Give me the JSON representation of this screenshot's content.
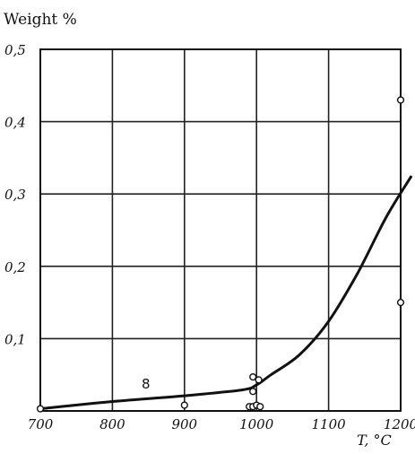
{
  "chart_data": {
    "type": "scatter",
    "ylabel": "Weight %",
    "xlabel": "T, °C",
    "xlim": [
      700,
      1200
    ],
    "ylim": [
      0,
      0.5
    ],
    "x_ticks": [
      "700",
      "800",
      "900",
      "1000",
      "1100",
      "1200"
    ],
    "y_ticks": [
      "0,1",
      "0,2",
      "0,3",
      "0,4",
      "0,5"
    ],
    "x_tick_values": [
      700,
      800,
      900,
      1000,
      1100,
      1200
    ],
    "y_tick_values": [
      0.1,
      0.2,
      0.3,
      0.4,
      0.5
    ],
    "grid": true,
    "points": [
      {
        "x": 700,
        "y": 0.003
      },
      {
        "x": 900,
        "y": 0.008
      },
      {
        "x": 990,
        "y": 0.006
      },
      {
        "x": 995,
        "y": 0.047
      },
      {
        "x": 995,
        "y": 0.027
      },
      {
        "x": 995,
        "y": 0.006
      },
      {
        "x": 1000,
        "y": 0.008
      },
      {
        "x": 1003,
        "y": 0.043
      },
      {
        "x": 1005,
        "y": 0.006
      },
      {
        "x": 1200,
        "y": 0.43
      },
      {
        "x": 1200,
        "y": 0.15
      }
    ],
    "curve": {
      "label": "8",
      "x": [
        700,
        800,
        900,
        980,
        1000,
        1020,
        1060,
        1100,
        1140,
        1180,
        1215
      ],
      "y": [
        0.003,
        0.013,
        0.021,
        0.029,
        0.036,
        0.05,
        0.078,
        0.124,
        0.19,
        0.268,
        0.325
      ]
    }
  }
}
